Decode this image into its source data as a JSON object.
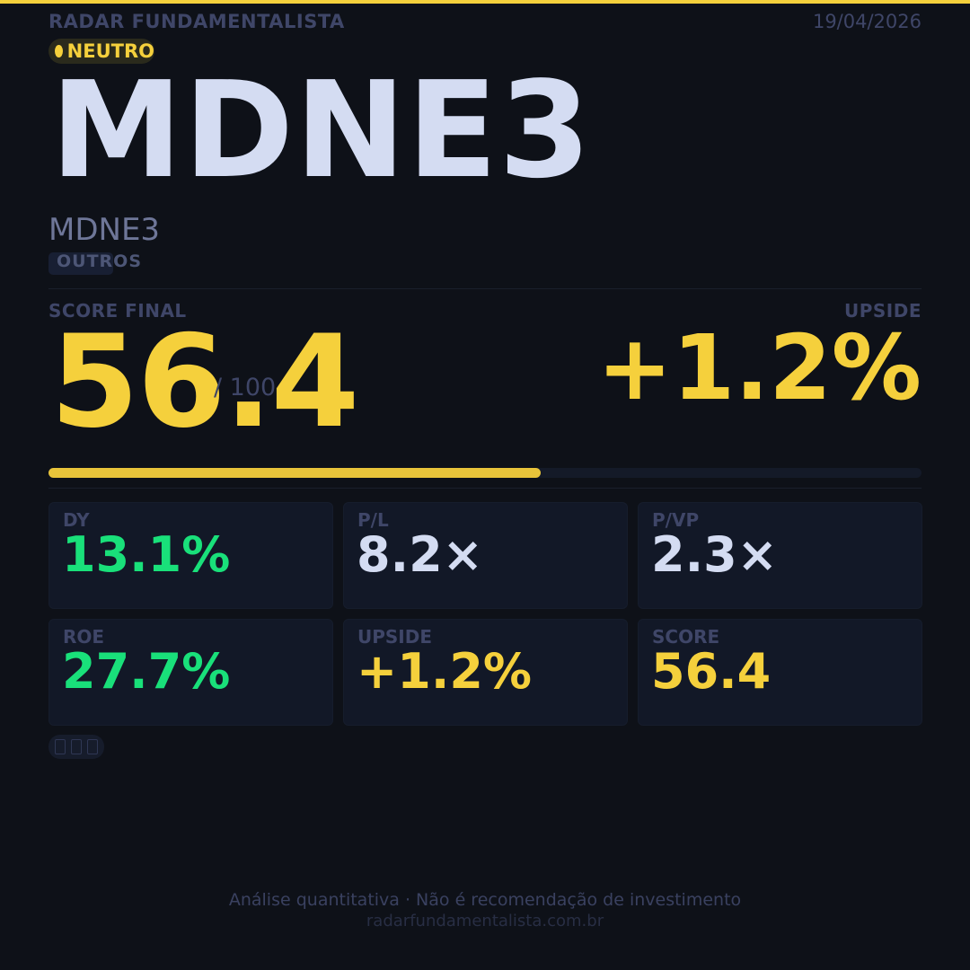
{
  "header": {
    "brand": "RADAR FUNDAMENTALISTA",
    "date": "19/04/2026"
  },
  "status": {
    "label": "NEUTRO",
    "color": "#f5d03c"
  },
  "ticker": {
    "symbol": "MDNE3",
    "name": "MDNE3",
    "sector": "OUTROS"
  },
  "score": {
    "title": "SCORE FINAL",
    "value": "56.4",
    "max_label": "/ 100",
    "fraction": 0.564
  },
  "upside": {
    "title": "UPSIDE",
    "value": "+1.2%"
  },
  "metrics": [
    {
      "label": "DY",
      "value": "13.1%",
      "color": "#19e07a"
    },
    {
      "label": "P/L",
      "value": "8.2×",
      "color": "#d4dcf2"
    },
    {
      "label": "P/VP",
      "value": "2.3×",
      "color": "#d4dcf2"
    },
    {
      "label": "ROE",
      "value": "27.7%",
      "color": "#19e07a"
    },
    {
      "label": "UPSIDE",
      "value": "+1.2%",
      "color": "#f5d03c"
    },
    {
      "label": "SCORE",
      "value": "56.4",
      "color": "#f5d03c"
    }
  ],
  "icons": [
    "missing-glyph-icon",
    "missing-glyph-icon",
    "missing-glyph-icon"
  ],
  "footer": {
    "disclaimer": "Análise quantitativa  ·  Não é recomendação de investimento",
    "site": "radarfundamentalista.com.br"
  },
  "colors": {
    "accent": "#f5d03c",
    "positive": "#19e07a",
    "background": "#0e1118"
  }
}
